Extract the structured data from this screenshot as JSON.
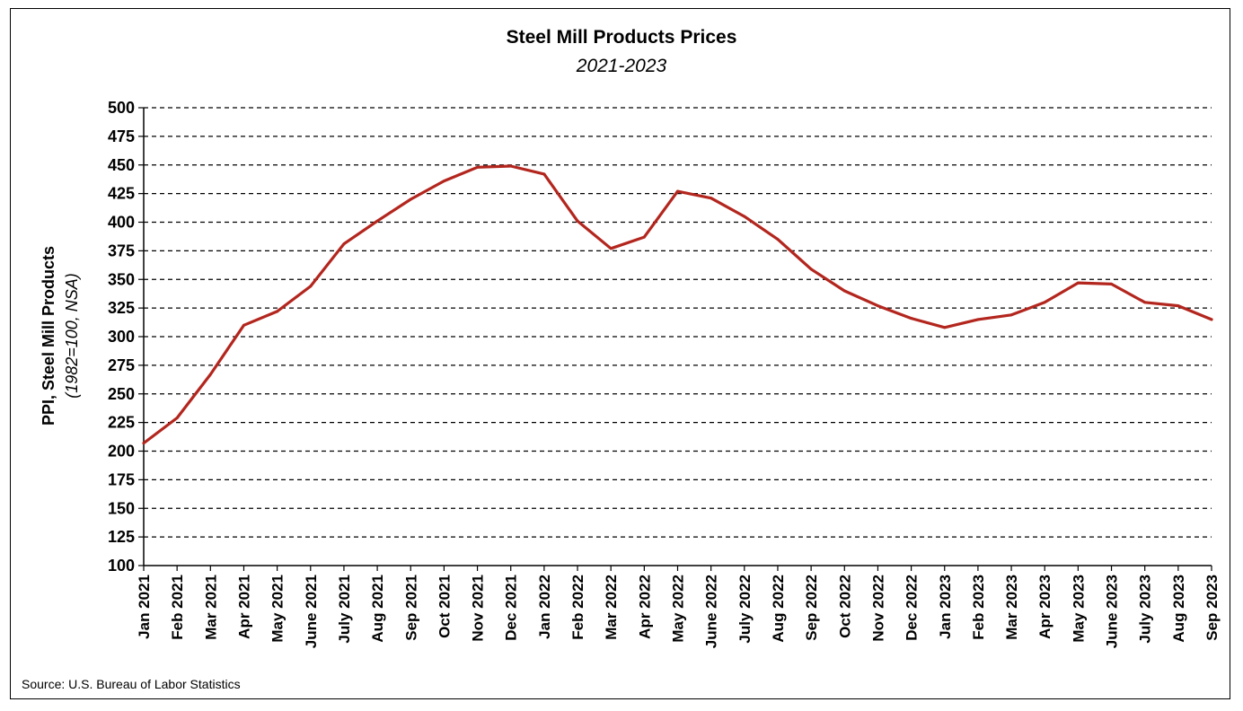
{
  "chart_data": {
    "type": "line",
    "title": "Steel Mill Products Prices",
    "subtitle": "2021-2023",
    "ylabel": "PPI, Steel Mill Products",
    "ylabel_sub": "(1982=100, NSA)",
    "xlabel": "",
    "ylim": [
      100,
      500
    ],
    "ytick_step": 25,
    "grid": "dashed horizontal",
    "line_color": "#b3261e",
    "categories": [
      "Jan 2021",
      "Feb 2021",
      "Mar 2021",
      "Apr 2021",
      "May 2021",
      "June 2021",
      "July 2021",
      "Aug 2021",
      "Sep 2021",
      "Oct 2021",
      "Nov 2021",
      "Dec 2021",
      "Jan 2022",
      "Feb 2022",
      "Mar 2022",
      "Apr 2022",
      "May 2022",
      "June 2022",
      "July 2022",
      "Aug 2022",
      "Sep 2022",
      "Oct 2022",
      "Nov 2022",
      "Dec 2022",
      "Jan 2023",
      "Feb 2023",
      "Mar 2023",
      "Apr 2023",
      "May 2023",
      "June 2023",
      "July 2023",
      "Aug 2023",
      "Sep 2023"
    ],
    "series": [
      {
        "values": [
          207,
          229,
          267,
          310,
          322,
          344,
          381,
          401,
          420,
          436,
          448,
          449,
          442,
          401,
          377,
          387,
          427,
          421,
          405,
          385,
          359,
          340,
          327,
          316,
          308,
          315,
          319,
          330,
          347,
          346,
          330,
          327,
          315
        ]
      }
    ]
  },
  "source": "Source: U.S. Bureau of Labor Statistics"
}
